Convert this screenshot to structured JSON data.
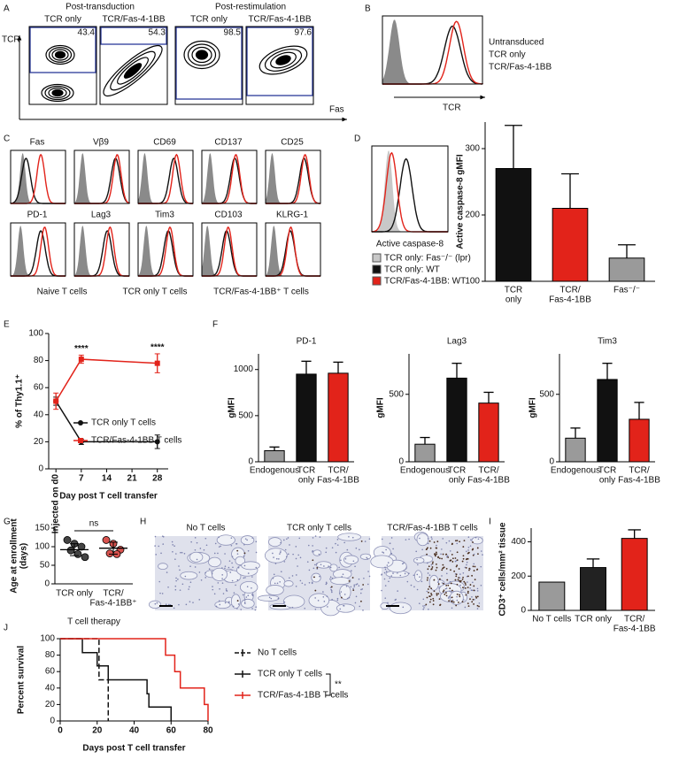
{
  "panel_labels": [
    "A",
    "B",
    "C",
    "D",
    "E",
    "F",
    "G",
    "H",
    "I",
    "J"
  ],
  "flow_A": {
    "headers": [
      "Post-transduction",
      "Post-restimulation"
    ],
    "plots": [
      {
        "title": "TCR only",
        "gate": "43.4"
      },
      {
        "title": "TCR/Fas-4-1BB",
        "gate": "54.3"
      },
      {
        "title": "TCR only",
        "gate": "98.5"
      },
      {
        "title": "TCR/Fas-4-1BB",
        "gate": "97.6"
      }
    ],
    "y_axis": "TCR",
    "x_axis": "Fas",
    "gate_color": "#2b3a99"
  },
  "hist_B": {
    "axis": "TCR",
    "legend": [
      {
        "text": "Untransduced",
        "color": "#8a8a8a"
      },
      {
        "text": "TCR only",
        "color": "#111111"
      },
      {
        "text": "TCR/Fas-4-1BB",
        "color": "#e2231a"
      }
    ]
  },
  "hist_C": {
    "markers": [
      "Fas",
      "Vβ9",
      "CD69",
      "CD137",
      "CD25",
      "PD-1",
      "Lag3",
      "Tim3",
      "CD103",
      "KLRG-1"
    ],
    "legend": [
      {
        "text": "Naive T cells",
        "color": "#8a8a8a"
      },
      {
        "text": "TCR only T cells",
        "color": "#111111"
      },
      {
        "text": "TCR/Fas-4-1BB⁺ T cells",
        "color": "#e2231a"
      }
    ]
  },
  "hist_D": {
    "axis": "Active caspase-8",
    "legend": [
      {
        "text": "TCR only: Fas⁻/⁻ (lpr)",
        "color": "#c8c8c8"
      },
      {
        "text": "TCR only: WT",
        "color": "#111111"
      },
      {
        "text": "TCR/Fas-4-1BB: WT",
        "color": "#e2231a"
      }
    ]
  },
  "images_H": {
    "titles": [
      "No T cells",
      "TCR only T cells",
      "TCR/Fas-4-1BB T cells"
    ]
  },
  "chart_data": [
    {
      "type": "bar",
      "ylabel": "Active caspase-8 gMFI",
      "categories": [
        [
          "TCR",
          "only"
        ],
        [
          "TCR/",
          "Fas-4-1BB"
        ],
        "Fas⁻/⁻"
      ],
      "values": [
        270,
        210,
        135
      ],
      "errors": [
        65,
        52,
        20
      ],
      "colors": [
        "#111111",
        "#e2231a",
        "#9a9a9a"
      ],
      "ylim": [
        100,
        340
      ],
      "yticks": [
        100,
        200,
        300
      ]
    },
    {
      "type": "line",
      "ylabel": "% of Thy1.1⁺",
      "xlabel": "Day post T cell transfer",
      "x": [
        0,
        7,
        28
      ],
      "xlim": [
        -2,
        31
      ],
      "xticks": [
        {
          "value": 0,
          "label": "Injected on d0"
        },
        7,
        14,
        21,
        28
      ],
      "ylim": [
        0,
        100
      ],
      "yticks": [
        0,
        20,
        40,
        60,
        80,
        100
      ],
      "series": [
        {
          "name": "TCR only T cells",
          "color": "#111111",
          "marker": "circle",
          "values": [
            50,
            20,
            20
          ],
          "errors": [
            3,
            2,
            5
          ]
        },
        {
          "name": "TCR/Fas-4-1BB T cells",
          "color": "#e2231a",
          "marker": "square",
          "values": [
            50,
            81,
            78
          ],
          "errors": [
            6,
            3,
            7
          ]
        }
      ],
      "annotations": [
        {
          "text": "****",
          "x": 7
        },
        {
          "text": "****",
          "x": 28
        }
      ]
    },
    {
      "type": "bar",
      "title": "PD-1",
      "ylabel": "gMFI",
      "categories": [
        "Endogenous",
        [
          "TCR",
          "only"
        ],
        [
          "TCR/",
          "Fas-4-1BB"
        ]
      ],
      "values": [
        120,
        950,
        960
      ],
      "errors": [
        40,
        140,
        120
      ],
      "colors": [
        "#9a9a9a",
        "#111111",
        "#e2231a"
      ],
      "ylim": [
        0,
        1170
      ],
      "yticks": [
        0,
        500,
        1000
      ]
    },
    {
      "type": "bar",
      "title": "Lag3",
      "ylabel": "gMFI",
      "categories": [
        "Endogenous",
        [
          "TCR",
          "only"
        ],
        [
          "TCR/",
          "Fas-4-1BB"
        ]
      ],
      "values": [
        130,
        620,
        435
      ],
      "errors": [
        50,
        110,
        80
      ],
      "colors": [
        "#9a9a9a",
        "#111111",
        "#e2231a"
      ],
      "ylim": [
        0,
        800
      ],
      "yticks": [
        0,
        500
      ]
    },
    {
      "type": "bar",
      "title": "Tim3",
      "ylabel": "gMFI",
      "categories": [
        "Endogenous",
        [
          "TCR",
          "only"
        ],
        [
          "TCR/",
          "Fas-4-1BB"
        ]
      ],
      "values": [
        175,
        610,
        315
      ],
      "errors": [
        75,
        120,
        125
      ],
      "colors": [
        "#9a9a9a",
        "#111111",
        "#e2231a"
      ],
      "ylim": [
        0,
        800
      ],
      "yticks": [
        0,
        500
      ]
    },
    {
      "type": "dot",
      "ylabel": [
        "Age at enrollment",
        "(days)"
      ],
      "xlabel": "T cell therapy",
      "categories": [
        "TCR only",
        [
          "TCR/",
          "Fas-4-1BB⁺"
        ]
      ],
      "values": [
        [
          118,
          108,
          100,
          90,
          80,
          72
        ],
        [
          118,
          108,
          92,
          82,
          80
        ]
      ],
      "means": [
        92,
        96
      ],
      "sds": [
        16,
        16
      ],
      "colors": [
        "#444444",
        "#d9534f"
      ],
      "category_colors": [
        "#111111",
        "#e2231a"
      ],
      "ylim": [
        0,
        150
      ],
      "yticks": [
        0,
        50,
        100,
        150
      ],
      "annotations": [
        {
          "text": "ns"
        }
      ]
    },
    {
      "type": "bar",
      "ylabel": "CD3⁺ cells/mm² tissue",
      "categories": [
        "No T cells",
        "TCR only",
        [
          "TCR/",
          "Fas-4-1BB"
        ]
      ],
      "values": [
        165,
        250,
        420
      ],
      "errors": [
        null,
        50,
        50
      ],
      "colors": [
        "#9a9a9a",
        "#222222",
        "#e2231a"
      ],
      "ylim": [
        0,
        480
      ],
      "yticks": [
        0,
        200,
        400
      ]
    },
    {
      "type": "survival",
      "ylabel": "Percent survival",
      "xlabel": "Days post T cell transfer",
      "xlim": [
        0,
        80
      ],
      "xticks": [
        0,
        20,
        40,
        60,
        80
      ],
      "ylim": [
        0,
        100
      ],
      "yticks": [
        0,
        20,
        40,
        60,
        80,
        100
      ],
      "series": [
        {
          "name": "No T cells",
          "color": "#111111",
          "dashed": true,
          "x": [
            0,
            21,
            26
          ],
          "values": [
            100,
            50,
            0
          ]
        },
        {
          "name": "TCR only T cells",
          "color": "#111111",
          "dashed": false,
          "x": [
            0,
            12,
            20,
            26,
            47,
            48,
            60
          ],
          "values": [
            100,
            83,
            67,
            50,
            33,
            17,
            0
          ]
        },
        {
          "name": "TCR/Fas-4-1BB T cells",
          "color": "#e2231a",
          "dashed": false,
          "x": [
            0,
            57,
            62,
            65,
            78,
            80
          ],
          "values": [
            100,
            80,
            60,
            40,
            20,
            0
          ]
        }
      ],
      "annotations": [
        {
          "text": "**"
        }
      ]
    }
  ]
}
